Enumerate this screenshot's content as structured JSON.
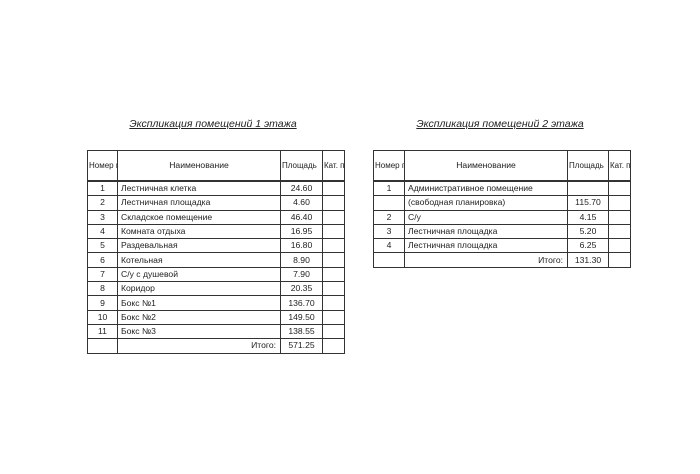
{
  "headers": {
    "num": "Номер помещ.",
    "name": "Наименование",
    "area": "Площадь",
    "cat": "Кат. пом."
  },
  "floor1": {
    "title": "Экспликация помещений 1 этажа",
    "rows": [
      {
        "num": "1",
        "name": "Лестничная клетка",
        "area": "24.60"
      },
      {
        "num": "2",
        "name": "Лестничная площадка",
        "area": "4.60"
      },
      {
        "num": "3",
        "name": "Складское помещение",
        "area": "46.40"
      },
      {
        "num": "4",
        "name": "Комната отдыха",
        "area": "16.95"
      },
      {
        "num": "5",
        "name": "Раздевальная",
        "area": "16.80"
      },
      {
        "num": "6",
        "name": "Котельная",
        "area": "8.90"
      },
      {
        "num": "7",
        "name": "С/у с душевой",
        "area": "7.90"
      },
      {
        "num": "8",
        "name": "Коридор",
        "area": "20.35"
      },
      {
        "num": "9",
        "name": "Бокс №1",
        "area": "136.70"
      },
      {
        "num": "10",
        "name": "Бокс №2",
        "area": "149.50"
      },
      {
        "num": "11",
        "name": "Бокс №3",
        "area": "138.55"
      }
    ],
    "total_label": "Итого:",
    "total": "571.25"
  },
  "floor2": {
    "title": "Экспликация помещений 2 этажа",
    "rows": [
      {
        "num": "1",
        "name": "Административное помещение",
        "area": ""
      },
      {
        "num": "",
        "name": "(свободная планировка)",
        "area": "115.70"
      },
      {
        "num": "2",
        "name": "С/у",
        "area": "4.15"
      },
      {
        "num": "3",
        "name": "Лестничная площадка",
        "area": "5.20"
      },
      {
        "num": "4",
        "name": "Лестничная площадка",
        "area": "6.25"
      }
    ],
    "total_label": "Итого:",
    "total": "131.30"
  }
}
